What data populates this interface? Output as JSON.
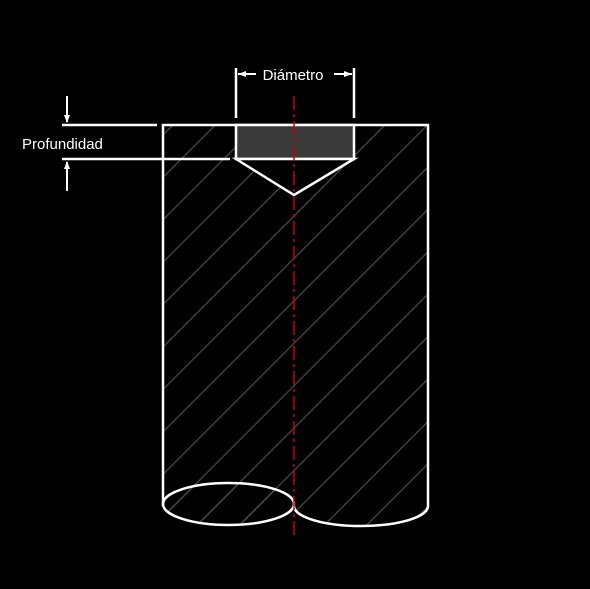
{
  "labels": {
    "diameter": "Diámetro",
    "depth": "Profundidad"
  },
  "colors": {
    "background": "#000000",
    "outline": "#ffffff",
    "hatch": "#4a4a4a",
    "hole_fill": "#3a3a3a",
    "centerline": "#cc0000"
  }
}
